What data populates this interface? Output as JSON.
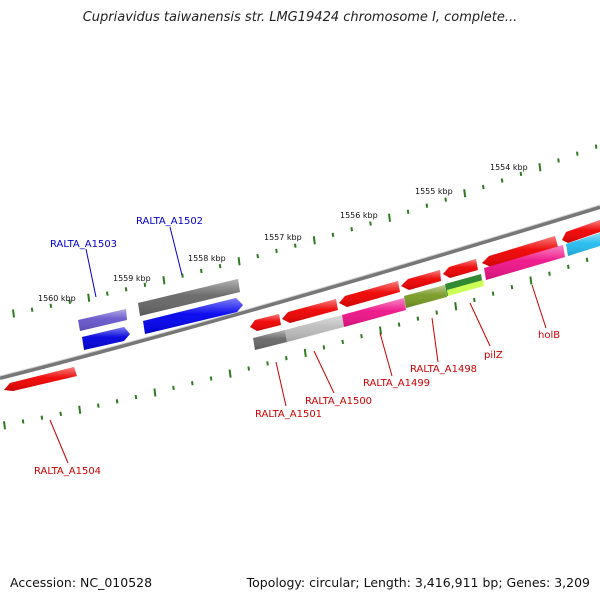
{
  "title": "Cupriavidus taiwanensis str. LMG19424 chromosome I, complete...",
  "footer": {
    "accession": "Accession: NC_010528",
    "summary": "Topology: circular; Length: 3,416,911 bp; Genes: 3,209"
  },
  "scale": {
    "unit": "kbp",
    "tick_labels": [
      "1560 kbp",
      "1559 kbp",
      "1558 kbp",
      "1557 kbp",
      "1556 kbp",
      "1555 kbp",
      "1554 kbp"
    ]
  },
  "genes": [
    {
      "label": "RALTA_A1504",
      "strand": "reverse",
      "color": "#ee0000"
    },
    {
      "label": "RALTA_A1503",
      "strand": "forward",
      "color": "#6655cc"
    },
    {
      "label": "RALTA_A1502",
      "strand": "forward",
      "color": "#666666"
    },
    {
      "label": "RALTA_A1501",
      "strand": "reverse",
      "color": "#666666"
    },
    {
      "label": "RALTA_A1500",
      "strand": "reverse",
      "color": "#bbbbbb"
    },
    {
      "label": "RALTA_A1499",
      "strand": "reverse",
      "color": "#ee1188"
    },
    {
      "label": "RALTA_A1498",
      "strand": "reverse",
      "color": "#779922"
    },
    {
      "label": "pilZ",
      "strand": "reverse",
      "color": "#338833"
    },
    {
      "label": "holB",
      "strand": "reverse",
      "color": "#ee1188"
    }
  ],
  "colors": {
    "tick": "#2d7a1f",
    "backbone": "#888888",
    "forward_label": "#0000cc",
    "reverse_label": "#cc0000"
  }
}
